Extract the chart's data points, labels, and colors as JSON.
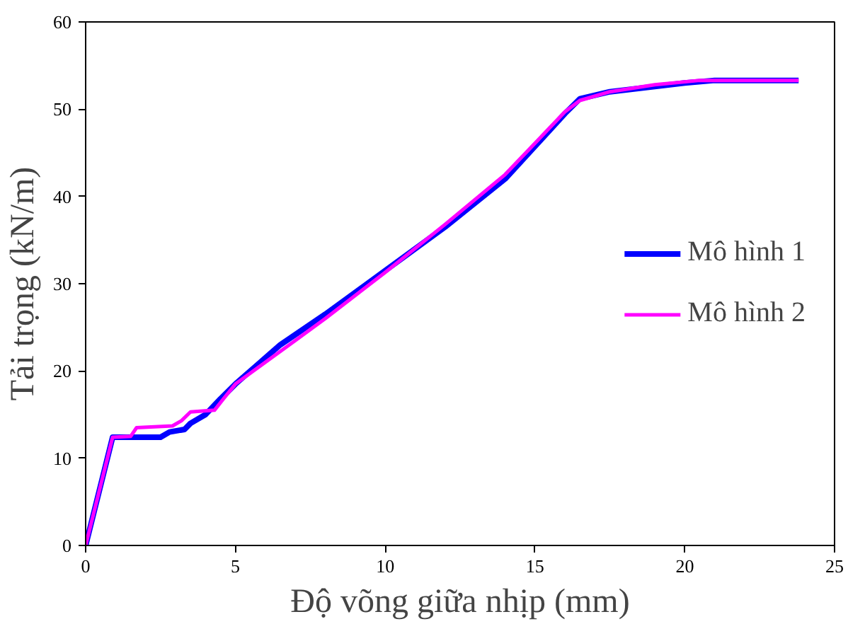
{
  "chart_data": {
    "type": "line",
    "xlabel": "Độ võng giữa nhịp (mm)",
    "ylabel": "Tải trọng (kN/m)",
    "xlim": [
      0,
      25
    ],
    "ylim": [
      0,
      60
    ],
    "xticks": [
      0,
      5,
      10,
      15,
      20,
      25
    ],
    "yticks": [
      0,
      10,
      20,
      30,
      40,
      50,
      60
    ],
    "grid": false,
    "legend": "right",
    "marker": "none",
    "line_style": "solid",
    "series": [
      {
        "name": "Mô hình 1",
        "color": "#0000ff",
        "x": [
          0,
          0.9,
          2.5,
          2.8,
          3.3,
          3.5,
          4,
          4.5,
          5,
          6,
          6.5,
          8,
          10,
          12,
          14,
          16,
          16.5,
          17.5,
          20,
          21,
          23.8
        ],
        "values": [
          0,
          12.4,
          12.4,
          13,
          13.3,
          14,
          15,
          16.8,
          18.5,
          21.5,
          23,
          26.5,
          31.5,
          36.5,
          42,
          49.5,
          51.2,
          52,
          53,
          53.3,
          53.3
        ]
      },
      {
        "name": "Mô hình 2",
        "color": "#ff00ff",
        "x": [
          0,
          0.9,
          1.5,
          1.7,
          2.9,
          3.2,
          3.5,
          4.3,
          4.6,
          5,
          6,
          7,
          8,
          10,
          12,
          14,
          16,
          16.5,
          17.5,
          19,
          20.5,
          23.8
        ],
        "values": [
          0,
          12.4,
          12.5,
          13.5,
          13.7,
          14.3,
          15.3,
          15.5,
          16.8,
          18.5,
          21,
          23.5,
          26,
          31.3,
          36.8,
          42.5,
          49.7,
          51,
          52,
          52.8,
          53.3,
          53.3
        ]
      }
    ]
  }
}
